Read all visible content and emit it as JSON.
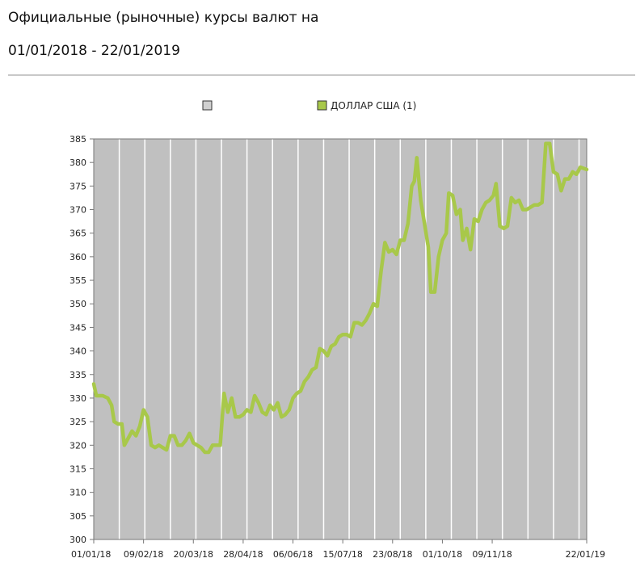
{
  "header": {
    "title_line1": "Официальные (рыночные) курсы валют на",
    "title_line2": "01/01/2018 - 22/01/2019"
  },
  "legend": {
    "empty_entry": "",
    "series_entry": "ДОЛЛАР США (1)"
  },
  "colors": {
    "plot_background": "#c0c0c0",
    "gridline": "#ffffff",
    "series": "#a8c84a",
    "axis": "#777777"
  },
  "chart_data": {
    "type": "line",
    "title": "",
    "xlabel": "",
    "ylabel": "",
    "ylim": [
      300,
      385
    ],
    "y_ticks": [
      300,
      305,
      310,
      315,
      320,
      325,
      330,
      335,
      340,
      345,
      350,
      355,
      360,
      365,
      370,
      375,
      380,
      385
    ],
    "x_range": [
      "01/01/18",
      "22/01/19"
    ],
    "x_ticks": [
      "01/01/18",
      "09/02/18",
      "20/03/18",
      "28/04/18",
      "06/06/18",
      "15/07/18",
      "23/08/18",
      "01/10/18",
      "09/11/18",
      "22/01/19"
    ],
    "grid": true,
    "legend_position": "top",
    "series": [
      {
        "name": "ДОЛЛАР США (1)",
        "points": [
          [
            "01/01/18",
            333
          ],
          [
            "03/01/18",
            330.5
          ],
          [
            "08/01/18",
            330.5
          ],
          [
            "12/01/18",
            330
          ],
          [
            "15/01/18",
            328.5
          ],
          [
            "17/01/18",
            325
          ],
          [
            "20/01/18",
            324.5
          ],
          [
            "23/01/18",
            324.5
          ],
          [
            "25/01/18",
            320
          ],
          [
            "28/01/18",
            321.5
          ],
          [
            "31/01/18",
            323
          ],
          [
            "03/02/18",
            322
          ],
          [
            "06/02/18",
            324
          ],
          [
            "09/02/18",
            327.5
          ],
          [
            "12/02/18",
            326
          ],
          [
            "15/02/18",
            320
          ],
          [
            "18/02/18",
            319.5
          ],
          [
            "21/02/18",
            320
          ],
          [
            "24/02/18",
            319.5
          ],
          [
            "27/02/18",
            319
          ],
          [
            "02/03/18",
            322
          ],
          [
            "05/03/18",
            322
          ],
          [
            "08/03/18",
            320
          ],
          [
            "11/03/18",
            320
          ],
          [
            "14/03/18",
            321
          ],
          [
            "17/03/18",
            322.5
          ],
          [
            "20/03/18",
            320.5
          ],
          [
            "23/03/18",
            320
          ],
          [
            "26/03/18",
            319.5
          ],
          [
            "29/03/18",
            318.5
          ],
          [
            "01/04/18",
            318.5
          ],
          [
            "04/04/18",
            320
          ],
          [
            "07/04/18",
            320
          ],
          [
            "10/04/18",
            320
          ],
          [
            "13/04/18",
            331
          ],
          [
            "16/04/18",
            327
          ],
          [
            "19/04/18",
            330
          ],
          [
            "22/04/18",
            326
          ],
          [
            "25/04/18",
            326
          ],
          [
            "28/04/18",
            326.5
          ],
          [
            "01/05/18",
            327.5
          ],
          [
            "04/05/18",
            327
          ],
          [
            "07/05/18",
            330.5
          ],
          [
            "10/05/18",
            329
          ],
          [
            "13/05/18",
            327
          ],
          [
            "16/05/18",
            326.5
          ],
          [
            "19/05/18",
            328.5
          ],
          [
            "22/05/18",
            327.5
          ],
          [
            "25/05/18",
            329
          ],
          [
            "28/05/18",
            326
          ],
          [
            "31/05/18",
            326.5
          ],
          [
            "03/06/18",
            327.5
          ],
          [
            "06/06/18",
            330
          ],
          [
            "09/06/18",
            331
          ],
          [
            "12/06/18",
            331.5
          ],
          [
            "15/06/18",
            333.5
          ],
          [
            "18/06/18",
            334.5
          ],
          [
            "21/06/18",
            336
          ],
          [
            "24/06/18",
            336.5
          ],
          [
            "27/06/18",
            340.5
          ],
          [
            "30/06/18",
            340
          ],
          [
            "03/07/18",
            339
          ],
          [
            "06/07/18",
            341
          ],
          [
            "09/07/18",
            341.5
          ],
          [
            "12/07/18",
            343
          ],
          [
            "15/07/18",
            343.5
          ],
          [
            "18/07/18",
            343.5
          ],
          [
            "21/07/18",
            343
          ],
          [
            "24/07/18",
            346
          ],
          [
            "27/07/18",
            346
          ],
          [
            "30/07/18",
            345.5
          ],
          [
            "02/08/18",
            346.5
          ],
          [
            "05/08/18",
            348
          ],
          [
            "08/08/18",
            350
          ],
          [
            "11/08/18",
            349.5
          ],
          [
            "14/08/18",
            357
          ],
          [
            "17/08/18",
            363
          ],
          [
            "20/08/18",
            361
          ],
          [
            "23/08/18",
            361.5
          ],
          [
            "26/08/18",
            360.5
          ],
          [
            "29/08/18",
            363.5
          ],
          [
            "01/09/18",
            363.5
          ],
          [
            "04/09/18",
            367
          ],
          [
            "07/09/18",
            375
          ],
          [
            "09/09/18",
            376
          ],
          [
            "11/09/18",
            381
          ],
          [
            "14/09/18",
            372
          ],
          [
            "17/09/18",
            367
          ],
          [
            "20/09/18",
            362
          ],
          [
            "22/09/18",
            352.5
          ],
          [
            "25/09/18",
            352.5
          ],
          [
            "28/09/18",
            360
          ],
          [
            "01/10/18",
            363.5
          ],
          [
            "04/10/18",
            365
          ],
          [
            "06/10/18",
            373.5
          ],
          [
            "09/10/18",
            373
          ],
          [
            "12/10/18",
            369
          ],
          [
            "15/10/18",
            370
          ],
          [
            "17/10/18",
            363.5
          ],
          [
            "20/10/18",
            366
          ],
          [
            "23/10/18",
            361.5
          ],
          [
            "26/10/18",
            368
          ],
          [
            "29/10/18",
            367.5
          ],
          [
            "01/11/18",
            370
          ],
          [
            "04/11/18",
            371.5
          ],
          [
            "07/11/18",
            372
          ],
          [
            "10/11/18",
            373
          ],
          [
            "12/11/18",
            375.5
          ],
          [
            "15/11/18",
            366.5
          ],
          [
            "18/11/18",
            366
          ],
          [
            "21/11/18",
            366.5
          ],
          [
            "24/11/18",
            372.5
          ],
          [
            "27/11/18",
            371.5
          ],
          [
            "30/11/18",
            372
          ],
          [
            "03/12/18",
            370
          ],
          [
            "06/12/18",
            370
          ],
          [
            "09/12/18",
            370.5
          ],
          [
            "12/12/18",
            371
          ],
          [
            "15/12/18",
            371
          ],
          [
            "18/12/18",
            371.5
          ],
          [
            "21/12/18",
            384
          ],
          [
            "24/12/18",
            384
          ],
          [
            "27/12/18",
            378
          ],
          [
            "30/12/18",
            377.5
          ],
          [
            "02/01/19",
            374
          ],
          [
            "05/01/19",
            376.5
          ],
          [
            "08/01/19",
            376.5
          ],
          [
            "11/01/19",
            378
          ],
          [
            "14/01/19",
            377.5
          ],
          [
            "17/01/19",
            379
          ],
          [
            "22/01/19",
            378.5
          ]
        ]
      }
    ]
  }
}
